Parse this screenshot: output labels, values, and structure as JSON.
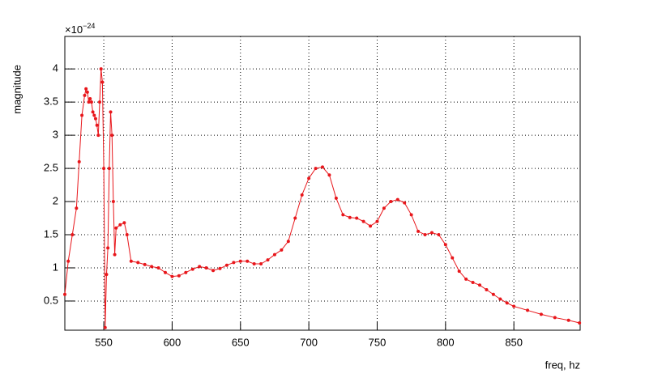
{
  "chart_data": {
    "type": "line",
    "y_label": "magnitude",
    "x_label": "freq, hz",
    "y_multiplier": {
      "base": "×10",
      "exponent": "−24"
    },
    "color": "#e8161b",
    "markers": true,
    "grid": true,
    "xlim": [
      521.5,
      898.5
    ],
    "ylim": [
      0.06,
      4.49
    ],
    "xticks": [
      550,
      600,
      650,
      700,
      750,
      800,
      850
    ],
    "yticks": [
      0.5,
      1,
      1.5,
      2,
      2.5,
      3,
      3.5,
      4
    ],
    "x": [
      521.5,
      524,
      527,
      530,
      532,
      534,
      536,
      537,
      538,
      539,
      540,
      541,
      542,
      543,
      544,
      545,
      546,
      547,
      548,
      549,
      550,
      551,
      552,
      553,
      554,
      555,
      556,
      557,
      558,
      559,
      562,
      565,
      567,
      570,
      575,
      580,
      585,
      590,
      595,
      600,
      605,
      610,
      615,
      620,
      625,
      630,
      635,
      640,
      645,
      650,
      655,
      660,
      665,
      670,
      675,
      680,
      685,
      690,
      695,
      700,
      705,
      710,
      715,
      720,
      725,
      730,
      735,
      740,
      745,
      750,
      755,
      760,
      765,
      770,
      775,
      780,
      785,
      790,
      795,
      800,
      805,
      810,
      815,
      820,
      825,
      830,
      835,
      840,
      845,
      850,
      860,
      870,
      880,
      890,
      898
    ],
    "values": [
      0.6,
      1.1,
      1.5,
      1.9,
      2.6,
      3.3,
      3.6,
      3.7,
      3.65,
      3.5,
      3.55,
      3.5,
      3.35,
      3.3,
      3.25,
      3.15,
      3.0,
      3.5,
      4.0,
      3.8,
      2.5,
      0.1,
      0.9,
      1.3,
      2.5,
      3.35,
      3.0,
      2.0,
      1.2,
      1.6,
      1.65,
      1.68,
      1.5,
      1.1,
      1.08,
      1.05,
      1.02,
      1.0,
      0.93,
      0.87,
      0.88,
      0.93,
      0.98,
      1.02,
      1.0,
      0.96,
      0.99,
      1.04,
      1.08,
      1.1,
      1.1,
      1.06,
      1.06,
      1.12,
      1.2,
      1.27,
      1.4,
      1.75,
      2.1,
      2.35,
      2.5,
      2.52,
      2.4,
      2.05,
      1.8,
      1.76,
      1.75,
      1.7,
      1.63,
      1.7,
      1.9,
      2.0,
      2.03,
      1.98,
      1.8,
      1.55,
      1.5,
      1.53,
      1.5,
      1.35,
      1.15,
      0.95,
      0.83,
      0.78,
      0.74,
      0.67,
      0.6,
      0.53,
      0.47,
      0.42,
      0.36,
      0.3,
      0.25,
      0.21,
      0.17
    ]
  }
}
